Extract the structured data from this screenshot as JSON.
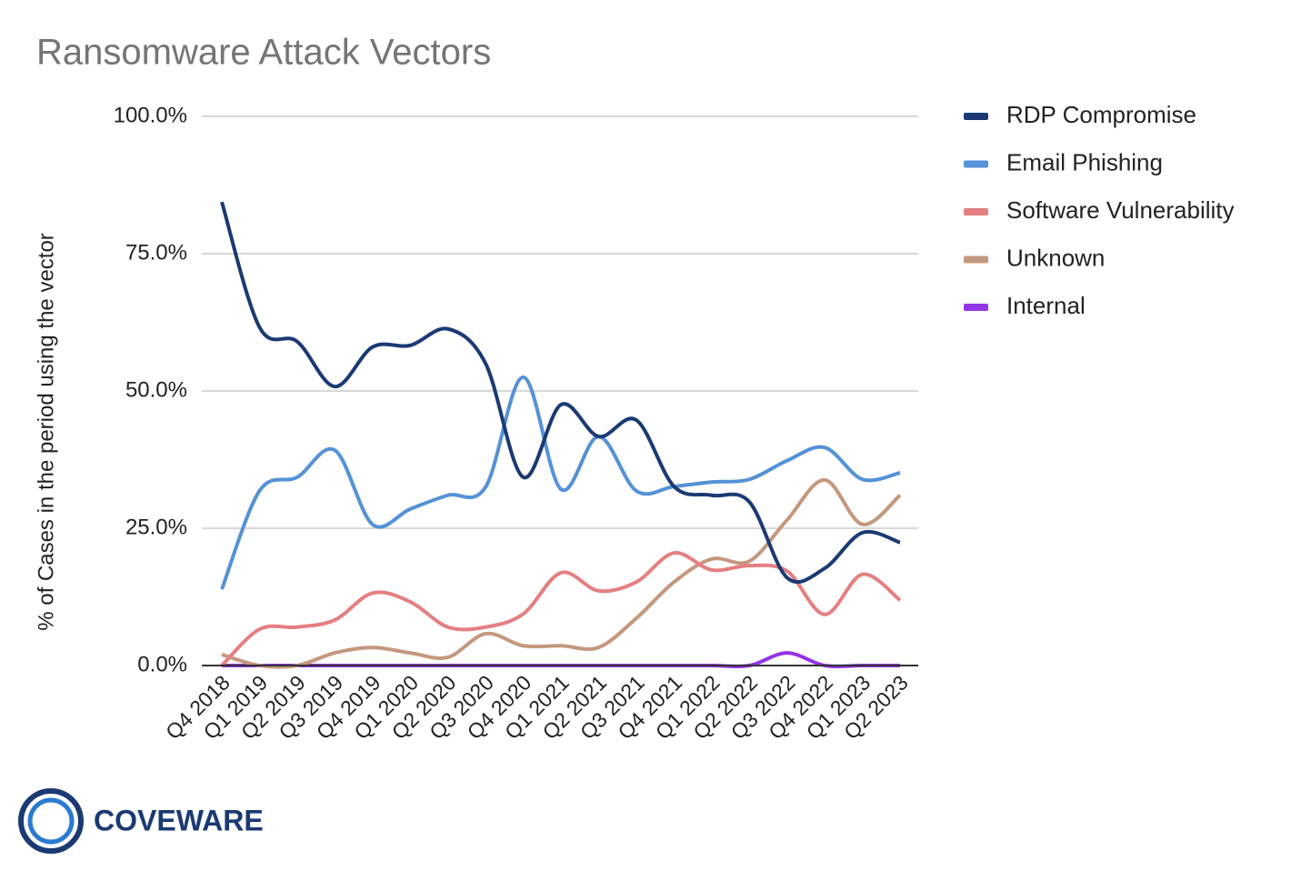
{
  "chart_data": {
    "type": "line",
    "title": "Ransomware Attack Vectors",
    "y_label": "% of Cases in the period using the vector",
    "categories": [
      "Q4 2018",
      "Q1 2019",
      "Q2 2019",
      "Q3 2019",
      "Q4 2019",
      "Q1 2020",
      "Q2 2020",
      "Q3 2020",
      "Q4 2020",
      "Q1 2021",
      "Q2 2021",
      "Q3 2021",
      "Q4 2021",
      "Q1 2022",
      "Q2 2022",
      "Q3 2022",
      "Q4 2022",
      "Q1 2023",
      "Q2 2023"
    ],
    "series": [
      {
        "name": "RDP Compromise",
        "color": "#1b3a73",
        "values": [
          84.4,
          61.6,
          59,
          50.8,
          58,
          58.3,
          61.3,
          55,
          34.3,
          47.5,
          41.7,
          44.7,
          32.6,
          31,
          29.8,
          16,
          17.7,
          24.2,
          22.4
        ]
      },
      {
        "name": "Email Phishing",
        "color": "#5592d6",
        "values": [
          13.9,
          31.8,
          34.3,
          39.2,
          25.7,
          28.5,
          31,
          32.5,
          52.5,
          32.1,
          41.7,
          31.8,
          32.6,
          33.4,
          33.9,
          37.3,
          39.7,
          33.9,
          35.1
        ]
      },
      {
        "name": "Software Vulnerability",
        "color": "#e57f82",
        "values": [
          0,
          6.6,
          7,
          8.3,
          13.2,
          11.6,
          7,
          7,
          9.4,
          16.9,
          13.6,
          15.2,
          20.5,
          17.4,
          18.2,
          17.2,
          9.3,
          16.6,
          11.9
        ]
      },
      {
        "name": "Unknown",
        "color": "#c4987e",
        "values": [
          2,
          0,
          0,
          2.3,
          3.3,
          2.3,
          1.5,
          5.8,
          3.6,
          3.6,
          3.3,
          8.6,
          15.2,
          19.4,
          19,
          26.5,
          33.8,
          25.7,
          31
        ]
      },
      {
        "name": "Internal",
        "color": "#9334e6",
        "values": [
          0,
          0,
          0,
          0,
          0,
          0,
          0,
          0,
          0,
          0,
          0,
          0,
          0,
          0,
          0,
          2.3,
          0,
          0,
          0
        ]
      }
    ],
    "ylim": [
      0,
      100
    ],
    "yticks": [
      {
        "value": 0,
        "label": "0.0%"
      },
      {
        "value": 25,
        "label": "25.0%"
      },
      {
        "value": 50,
        "label": "50.0%"
      },
      {
        "value": 75,
        "label": "75.0%"
      },
      {
        "value": 100,
        "label": "100.0%"
      }
    ],
    "grid": true,
    "legend": "right"
  },
  "brand": "COVEWARE"
}
